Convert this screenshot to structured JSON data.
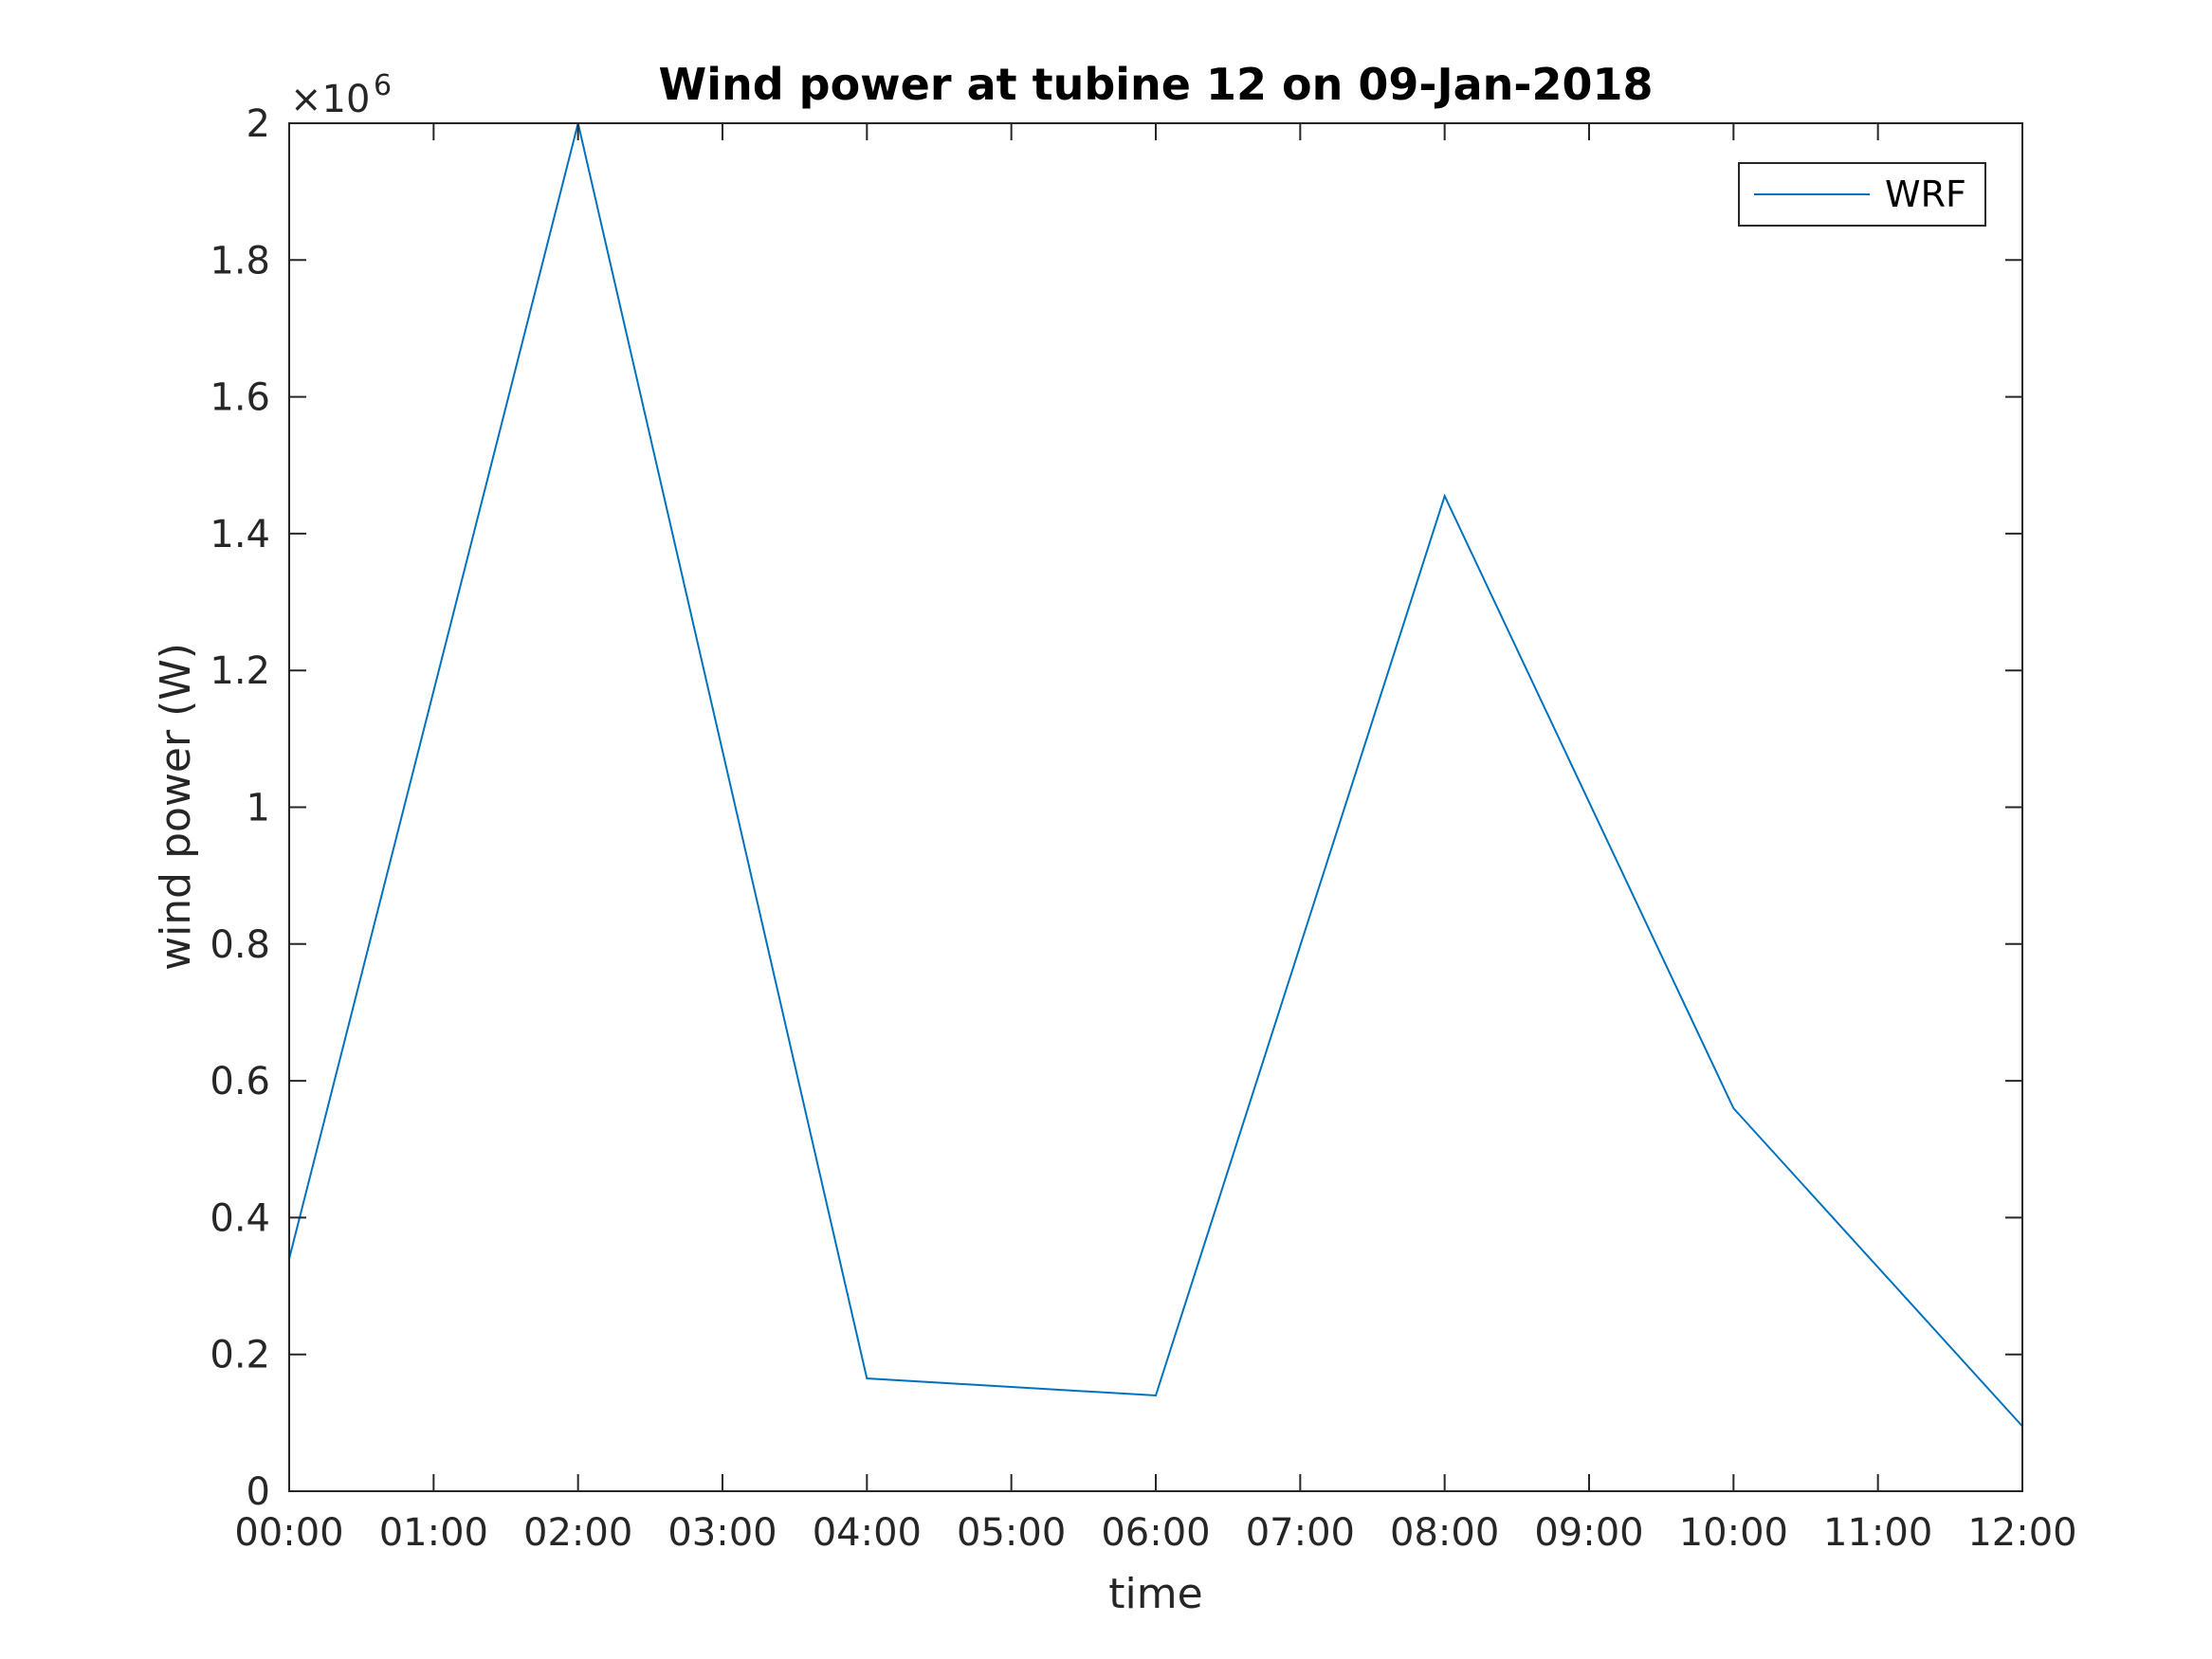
{
  "chart_data": {
    "type": "line",
    "title": "Wind power at tubine 12 on 09-Jan-2018",
    "xlabel": "time",
    "ylabel": "wind power (W)",
    "x_ticks": [
      "00:00",
      "01:00",
      "02:00",
      "03:00",
      "04:00",
      "05:00",
      "06:00",
      "07:00",
      "08:00",
      "09:00",
      "10:00",
      "11:00",
      "12:00"
    ],
    "y_ticks": [
      "0",
      "0.2",
      "0.4",
      "0.6",
      "0.8",
      "1",
      "1.2",
      "1.4",
      "1.6",
      "1.8",
      "2"
    ],
    "y_exponent_base": "×10",
    "y_exponent_power": "6",
    "xlim": [
      "00:00",
      "12:00"
    ],
    "ylim": [
      0,
      2000000
    ],
    "grid": false,
    "legend_position": "top-right",
    "series": [
      {
        "name": "WRF",
        "color": "#0072BD",
        "x": [
          "00:00",
          "02:00",
          "04:00",
          "06:00",
          "08:00",
          "10:00",
          "12:00"
        ],
        "values": [
          340000,
          2000000,
          165000,
          140000,
          1455000,
          560000,
          95000
        ]
      }
    ]
  }
}
